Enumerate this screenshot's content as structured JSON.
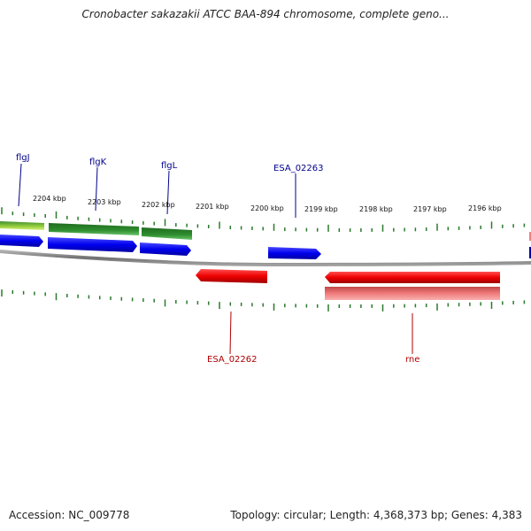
{
  "title": "Cronobacter sakazakii ATCC BAA-894 chromosome, complete geno...",
  "footer": {
    "accession": "Accession: NC_009778",
    "topology": "Topology: circular; Length: 4,368,373 bp; Genes: 4,383"
  },
  "colors": {
    "forward_gene": "#0000ee",
    "reverse_gene": "#ee0000",
    "cds_forward": "#2a8a2a",
    "cds_reverse": "#f07070",
    "ticks": "#2a7a2a",
    "backbone": "#808080",
    "forward_label": "#00008b",
    "reverse_label": "#b00000"
  },
  "ticks": [
    {
      "label": "2204 kbp"
    },
    {
      "label": "2203 kbp"
    },
    {
      "label": "2202 kbp"
    },
    {
      "label": "2201 kbp"
    },
    {
      "label": "2200 kbp"
    },
    {
      "label": "2199 kbp"
    },
    {
      "label": "2198 kbp"
    },
    {
      "label": "2197 kbp"
    },
    {
      "label": "2196 kbp"
    }
  ],
  "genes": [
    {
      "name": "flgJ",
      "strand": "forward"
    },
    {
      "name": "flgK",
      "strand": "forward"
    },
    {
      "name": "flgL",
      "strand": "forward"
    },
    {
      "name": "ESA_02263",
      "strand": "forward"
    },
    {
      "name": "ESA_02262",
      "strand": "reverse"
    },
    {
      "name": "rne",
      "strand": "reverse"
    }
  ]
}
